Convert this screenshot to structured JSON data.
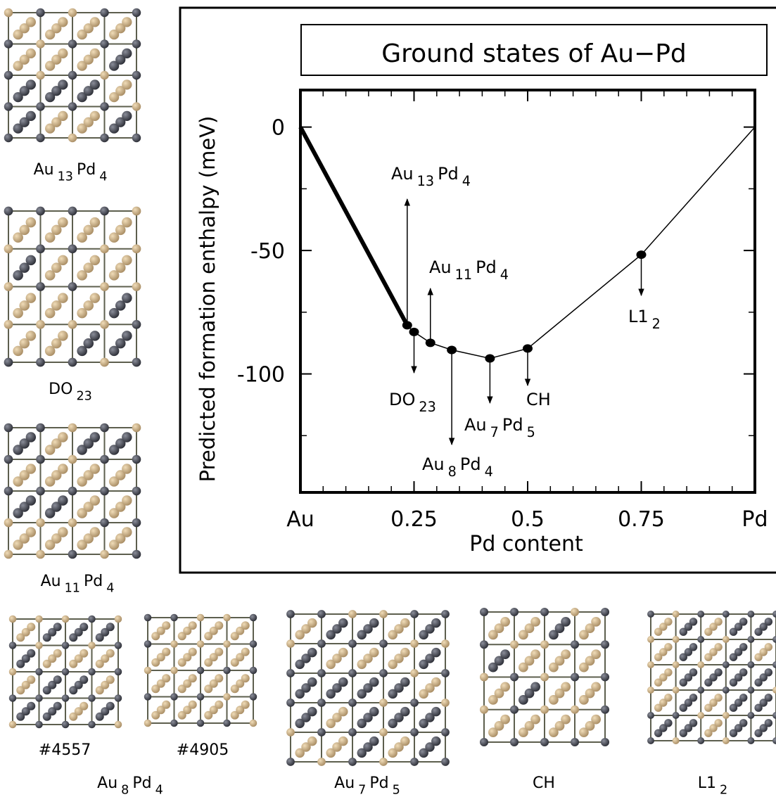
{
  "chart_data": {
    "type": "line",
    "title": "Ground states of Au−Pd",
    "xlabel": "Pd content",
    "ylabel": "Predicted formation enthalpy (meV)",
    "x": [
      0,
      0.235,
      0.25,
      0.286,
      0.333,
      0.417,
      0.5,
      0.75,
      1
    ],
    "values": [
      0,
      -80.3,
      -83,
      -87.4,
      -90.3,
      -93.7,
      -89.7,
      -51.7,
      0
    ],
    "point_labels": [
      null,
      [
        "Au",
        "13",
        "Pd",
        "4"
      ],
      [
        "DO",
        "23"
      ],
      [
        "Au",
        "11",
        "Pd",
        "4"
      ],
      [
        "Au",
        "8",
        "Pd",
        "4"
      ],
      [
        "Au",
        "7",
        "Pd",
        "5"
      ],
      [
        "CH"
      ],
      [
        "L1",
        "2"
      ],
      null
    ],
    "color": "#000000",
    "xlim": [
      0,
      1
    ],
    "ylim": [
      -148,
      15
    ],
    "xticks": [
      {
        "value": 0,
        "label": "Au"
      },
      0.25,
      0.5,
      0.75,
      {
        "value": 1,
        "label": "Pd"
      }
    ],
    "yticks": [
      0,
      -50,
      -100
    ],
    "xminorticks": [
      0.05,
      0.1,
      0.15,
      0.2,
      0.3,
      0.35,
      0.4,
      0.45,
      0.55,
      0.6,
      0.65,
      0.7,
      0.8,
      0.85,
      0.9,
      0.95
    ],
    "yminorticks": [
      -25,
      -75,
      -125
    ]
  },
  "structures": [
    {
      "label": [
        "Au",
        "13",
        "Pd",
        "4"
      ]
    },
    {
      "label": [
        "DO",
        "23"
      ]
    },
    {
      "label": [
        "Au",
        "11",
        "Pd",
        "4"
      ]
    },
    {
      "label": [
        "#4557"
      ]
    },
    {
      "label": [
        "#4905"
      ]
    },
    {
      "label": [
        "Au",
        "8",
        "Pd",
        "4"
      ]
    },
    {
      "label": [
        "Au",
        "7",
        "Pd",
        "5"
      ]
    },
    {
      "label": [
        "CH"
      ]
    },
    {
      "label": [
        "L1",
        "2"
      ]
    }
  ]
}
